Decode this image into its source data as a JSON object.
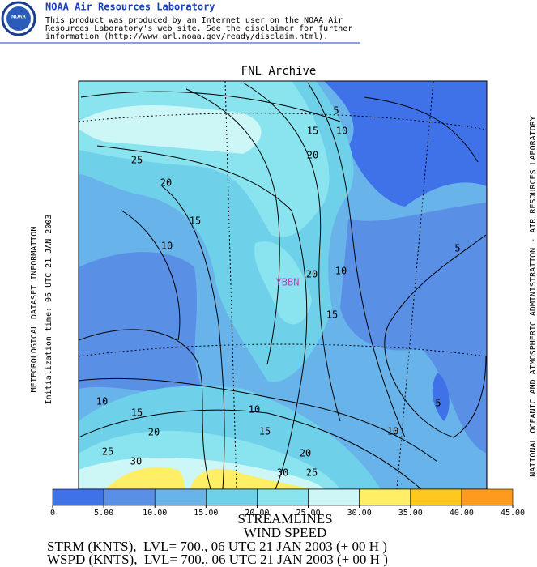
{
  "header": {
    "title": "NOAA Air Resources Laboratory",
    "logo_text": "NOAA",
    "disclaimer": [
      "This product was produced by an Internet user on the NOAA Air",
      "Resources Laboratory's web site.  See the disclaimer for further",
      "information (http://www.arl.noaa.gov/ready/disclaim.html)."
    ]
  },
  "map": {
    "title": "FNL Archive",
    "station": "YBBN",
    "left_labels": [
      "METEOROLOGICAL DATASET INFORMATION",
      "Initialization time: 06 UTC 21 JAN 2003"
    ],
    "right_label": "NATIONAL OCEANIC AND ATMOSPHERIC ADMINISTRATION - AIR RESOURCES LABORATORY",
    "contour_labels": [
      "5",
      "15",
      "10",
      "25",
      "20",
      "20",
      "15",
      "10",
      "5",
      "10",
      "20",
      "15",
      "5",
      "10",
      "15",
      "10",
      "20",
      "15",
      "10",
      "25",
      "20",
      "30",
      "30",
      "25"
    ]
  },
  "colorbar": {
    "ticks": [
      0,
      {
        "value": 5,
        "label": "5.00"
      },
      {
        "value": 10,
        "label": "10.00"
      },
      {
        "value": 15,
        "label": "15.00"
      },
      {
        "value": 20,
        "label": "20.00"
      },
      {
        "value": 25,
        "label": "25.00"
      },
      {
        "value": 30,
        "label": "30.00"
      },
      {
        "value": 35,
        "label": "35.00"
      },
      {
        "value": 40,
        "label": "40.00"
      },
      {
        "value": 45,
        "label": "45.00"
      }
    ],
    "colors": [
      "#3f72e8",
      "#5a8fe6",
      "#68b4ea",
      "#6fd0ea",
      "#8ae4ef",
      "#cdf6f6",
      "#ffee66",
      "#ffc81e",
      "#ff9a1e"
    ]
  },
  "footer": {
    "lines": [
      "STREAMLINES",
      "WIND SPEED",
      "STRM (KNTS),  LVL= 700., 06 UTC 21 JAN 2003 (+ 00 H )",
      "WSPD (KNTS),  LVL= 700., 06 UTC 21 JAN 2003 (+ 00 H )"
    ]
  }
}
